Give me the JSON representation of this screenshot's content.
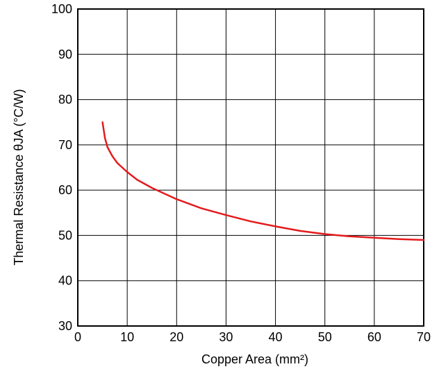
{
  "chart_data": {
    "type": "line",
    "xlabel": "Copper Area (mm²)",
    "ylabel": "Thermal Resistance θJA (°C/W)",
    "xlim": [
      0,
      70
    ],
    "ylim": [
      30,
      100
    ],
    "x_ticks": [
      "0",
      "10",
      "20",
      "30",
      "40",
      "50",
      "60",
      "70"
    ],
    "y_ticks": [
      "30",
      "40",
      "50",
      "60",
      "70",
      "80",
      "90",
      "100"
    ],
    "grid": true,
    "series": [
      {
        "color": "#e41a1c",
        "x": [
          5,
          5.5,
          6,
          7,
          8,
          9,
          10,
          12,
          15,
          20,
          25,
          30,
          35,
          40,
          45,
          50,
          55,
          60,
          65,
          70
        ],
        "y": [
          75,
          71.5,
          69.5,
          67.5,
          66,
          65,
          64,
          62.3,
          60.5,
          58,
          56,
          54.5,
          53.1,
          52,
          51,
          50.3,
          49.8,
          49.5,
          49.2,
          49
        ]
      }
    ]
  }
}
